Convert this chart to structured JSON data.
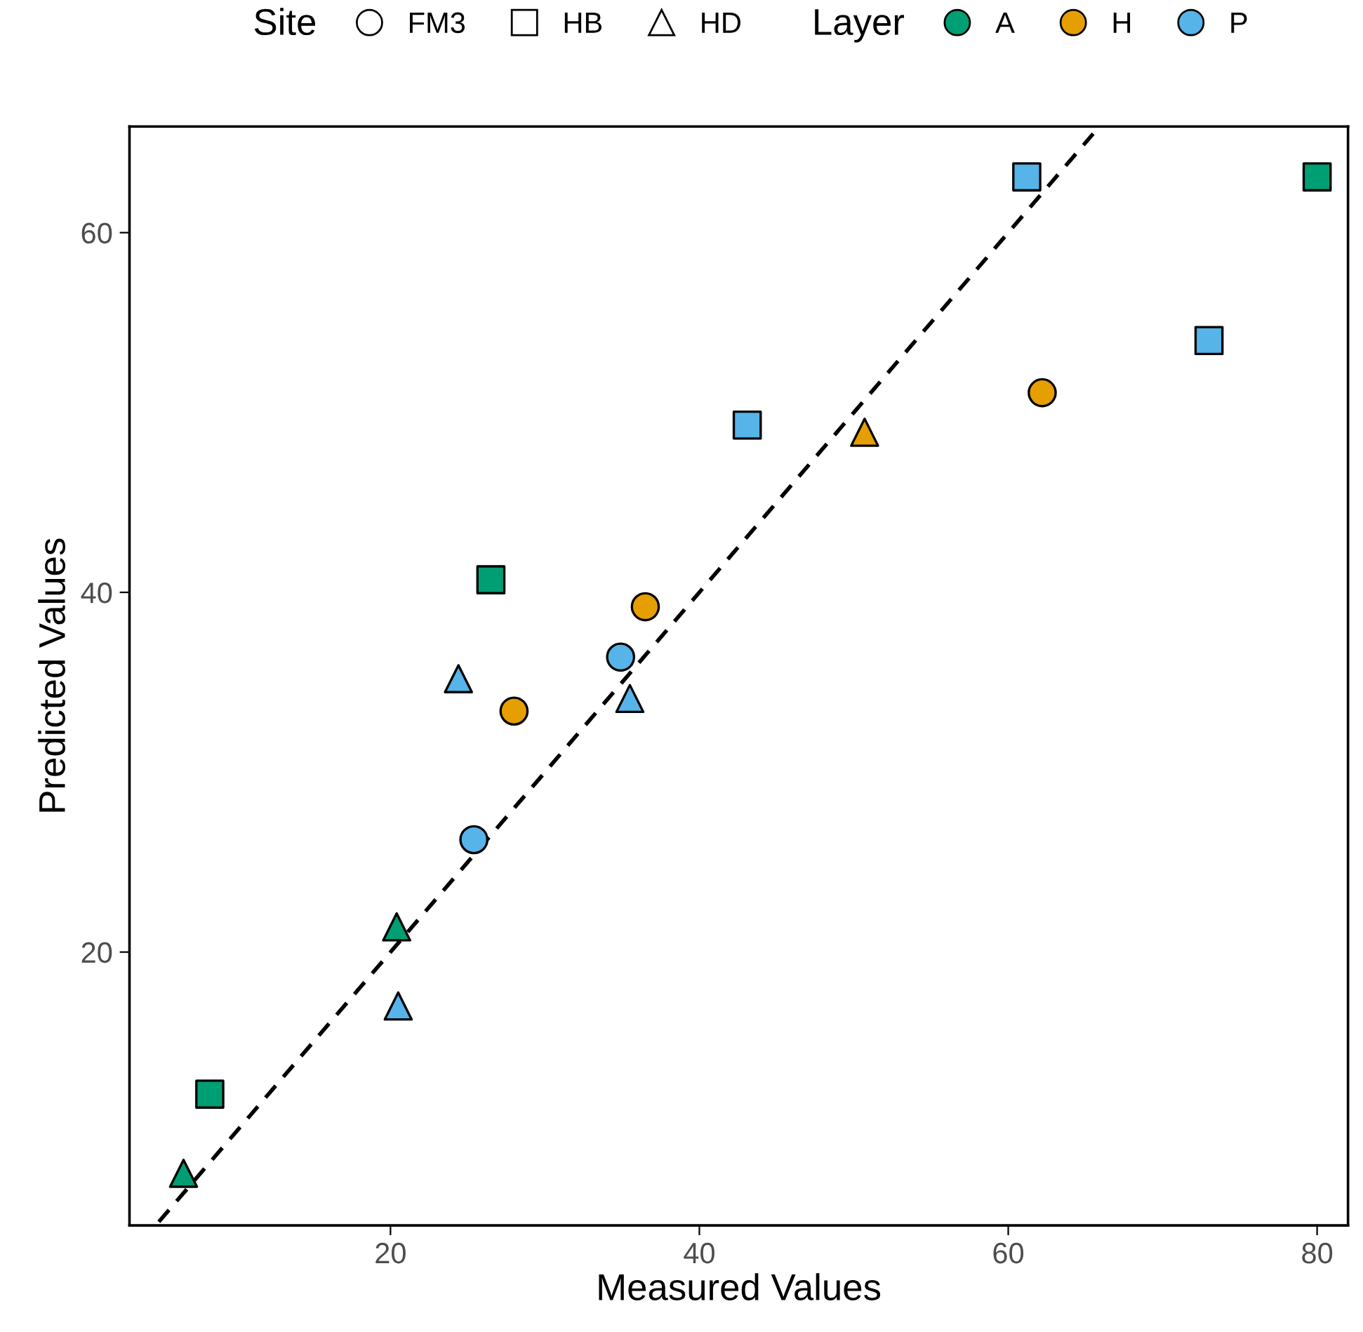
{
  "chart_data": {
    "type": "scatter",
    "xlabel": "Measured Values",
    "ylabel": "Predicted Values",
    "xlim": [
      3.1,
      82
    ],
    "ylim": [
      4.8,
      65.9
    ],
    "xticks": [
      20,
      40,
      60,
      80
    ],
    "yticks": [
      20,
      40,
      60
    ],
    "grid": false,
    "legend": "top",
    "legend_title": [
      "Site",
      "Layer"
    ],
    "series": [
      {
        "marker": "circle",
        "x": [
          25.4,
          34.9,
          28.0,
          36.5,
          62.2
        ],
        "values": [
          26.25,
          36.4,
          33.4,
          39.2,
          51.1
        ],
        "colors": [
          "#56b4e9",
          "#56b4e9",
          "#e69f00",
          "#e69f00",
          "#e69f00"
        ]
      },
      {
        "marker": "square",
        "x": [
          8.3,
          26.5,
          80.0,
          43.1,
          61.2,
          73.0
        ],
        "values": [
          12.1,
          40.7,
          63.1,
          49.3,
          63.1,
          54.0
        ],
        "colors": [
          "#009e73",
          "#009e73",
          "#009e73",
          "#56b4e9",
          "#56b4e9",
          "#56b4e9"
        ]
      },
      {
        "marker": "triangle",
        "x": [
          6.6,
          20.4,
          20.5,
          24.4,
          35.5,
          50.7
        ],
        "values": [
          7.7,
          21.4,
          17.0,
          35.2,
          34.1,
          48.9
        ],
        "colors": [
          "#009e73",
          "#009e73",
          "#56b4e9",
          "#56b4e9",
          "#56b4e9",
          "#e69f00"
        ]
      },
      {
        "name": "FM3",
        "marker": "circle",
        "color": "#ffffff"
      },
      {
        "name": "HB",
        "marker": "square",
        "color": "#ffffff"
      },
      {
        "name": "HD",
        "marker": "triangle",
        "color": "#ffffff"
      },
      {
        "name": "A",
        "marker": "circle",
        "color": "#009e73"
      },
      {
        "name": "H",
        "marker": "circle",
        "color": "#e69f00"
      },
      {
        "name": "P",
        "marker": "circle",
        "color": "#56b4e9"
      },
      {
        "type": "line",
        "line_style": "dashed",
        "color": "#000000",
        "x": [
          5,
          65.5
        ],
        "values": [
          5,
          65.5
        ]
      }
    ]
  }
}
